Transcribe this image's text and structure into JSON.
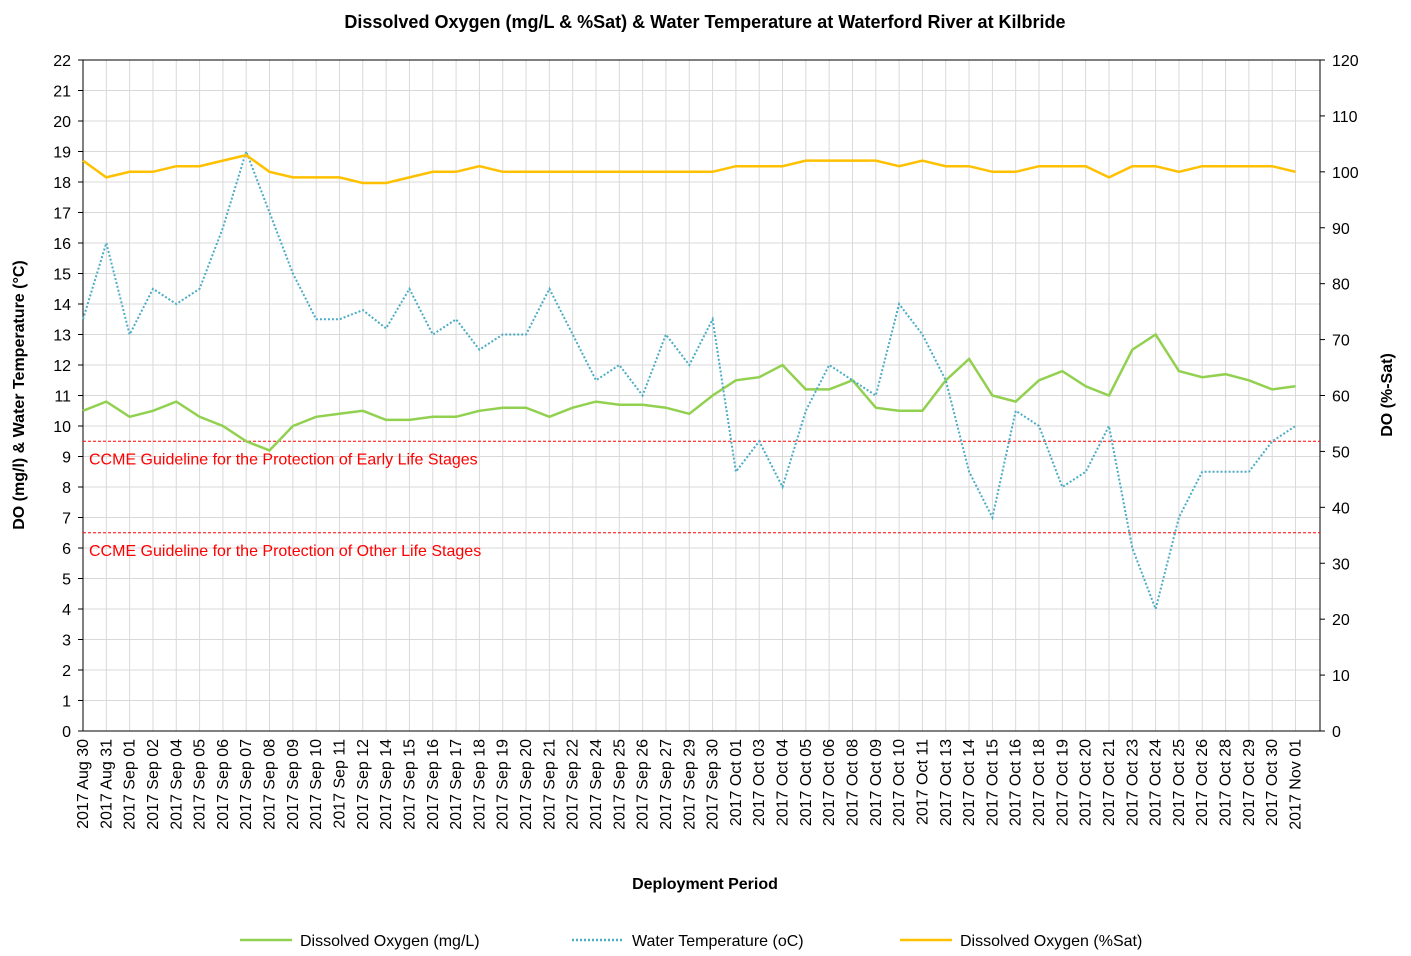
{
  "chart_data": {
    "type": "line",
    "title": "Dissolved Oxygen (mg/L & %Sat) & Water Temperature at Waterford River at Kilbride",
    "x_label": "Deployment Period",
    "y_label": "DO (mg/l) & Water Temperature (°C)",
    "y2_label": "DO (%-Sat)",
    "categories": [
      "2017 Aug 30",
      "2017 Aug 31",
      "2017 Sep 01",
      "2017 Sep 02",
      "2017 Sep 04",
      "2017 Sep 05",
      "2017 Sep 06",
      "2017 Sep 07",
      "2017 Sep 08",
      "2017 Sep 09",
      "2017 Sep 10",
      "2017 Sep 11",
      "2017 Sep 12",
      "2017 Sep 14",
      "2017 Sep 15",
      "2017 Sep 16",
      "2017 Sep 17",
      "2017 Sep 18",
      "2017 Sep 19",
      "2017 Sep 20",
      "2017 Sep 21",
      "2017 Sep 22",
      "2017 Sep 24",
      "2017 Sep 25",
      "2017 Sep 26",
      "2017 Sep 27",
      "2017 Sep 29",
      "2017 Sep 30",
      "2017 Oct 01",
      "2017 Oct 03",
      "2017 Oct 04",
      "2017 Oct 05",
      "2017 Oct 06",
      "2017 Oct 08",
      "2017 Oct 09",
      "2017 Oct 10",
      "2017 Oct 11",
      "2017 Oct 13",
      "2017 Oct 14",
      "2017 Oct 15",
      "2017 Oct 16",
      "2017 Oct 18",
      "2017 Oct 19",
      "2017 Oct 20",
      "2017 Oct 21",
      "2017 Oct 23",
      "2017 Oct 24",
      "2017 Oct 25",
      "2017 Oct 26",
      "2017 Oct 28",
      "2017 Oct 29",
      "2017 Oct 30",
      "2017 Nov 01"
    ],
    "series": [
      {
        "name": "Dissolved Oxygen (mg/L)",
        "color": "#92d050",
        "line_style": "solid",
        "values": [
          10.5,
          10.8,
          10.3,
          10.5,
          10.8,
          10.3,
          10.0,
          9.5,
          9.2,
          10.0,
          10.3,
          10.4,
          10.5,
          10.2,
          10.2,
          10.3,
          10.3,
          10.5,
          10.6,
          10.6,
          10.3,
          10.6,
          10.8,
          10.7,
          10.7,
          10.6,
          10.4,
          11.0,
          11.5,
          11.6,
          12.0,
          11.2,
          11.2,
          11.5,
          10.6,
          10.5,
          10.5,
          11.5,
          12.2,
          11.0,
          10.8,
          11.5,
          11.8,
          11.3,
          11.0,
          12.5,
          13.0,
          11.8,
          11.6,
          11.7,
          11.5,
          11.2,
          11.3
        ]
      },
      {
        "name": "Water Temperature (oC)",
        "color": "#4bacc6",
        "line_style": "dotted",
        "values": [
          13.5,
          16.0,
          13.0,
          14.5,
          14.0,
          14.5,
          16.5,
          19.0,
          17.0,
          15.0,
          13.5,
          13.5,
          13.8,
          13.2,
          14.5,
          13.0,
          13.5,
          12.5,
          13.0,
          13.0,
          14.5,
          13.0,
          11.5,
          12.0,
          11.0,
          13.0,
          12.0,
          13.5,
          8.5,
          9.5,
          8.0,
          10.5,
          12.0,
          11.5,
          11.0,
          14.0,
          13.0,
          11.5,
          8.5,
          7.0,
          10.5,
          10.0,
          8.0,
          8.5,
          10.0,
          6.0,
          4.0,
          7.0,
          8.5,
          8.5,
          8.5,
          9.5,
          10.0
        ]
      },
      {
        "name": "Dissolved Oxygen (%Sat)",
        "color": "#ffc000",
        "line_style": "solid",
        "axis": "y2",
        "values": [
          102,
          99,
          100,
          100,
          101,
          101,
          102,
          103,
          100,
          99,
          99,
          99,
          98,
          98,
          99,
          100,
          100,
          101,
          100,
          100,
          100,
          100,
          100,
          100,
          100,
          100,
          100,
          100,
          101,
          101,
          101,
          102,
          102,
          102,
          102,
          101,
          102,
          101,
          101,
          100,
          100,
          101,
          101,
          101,
          99,
          101,
          101,
          100,
          101,
          101,
          101,
          101,
          100
        ]
      }
    ],
    "reference_lines": [
      {
        "value": 9.5,
        "label": "CCME Guideline for the Protection of Early Life Stages",
        "color": "#ff0000"
      },
      {
        "value": 6.5,
        "label": "CCME Guideline for the Protection of Other Life Stages",
        "color": "#ff0000"
      }
    ],
    "ylim": [
      0,
      22
    ],
    "yticks": [
      0,
      1,
      2,
      3,
      4,
      5,
      6,
      7,
      8,
      9,
      10,
      11,
      12,
      13,
      14,
      15,
      16,
      17,
      18,
      19,
      20,
      21,
      22
    ],
    "y2lim": [
      0,
      120
    ],
    "y2ticks": [
      0,
      10,
      20,
      30,
      40,
      50,
      60,
      70,
      80,
      90,
      100,
      110,
      120
    ],
    "grid": true
  }
}
